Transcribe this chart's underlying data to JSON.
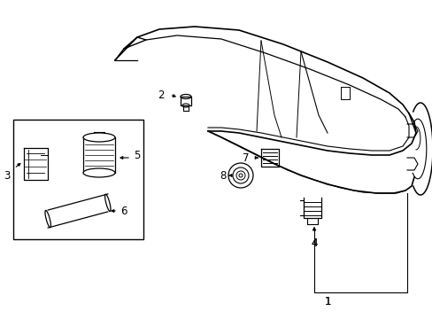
{
  "background_color": "#ffffff",
  "line_color": "#000000",
  "fig_width": 4.89,
  "fig_height": 3.6,
  "dpi": 100,
  "annotation_fontsize": 8.5,
  "arrow_color": "#000000",
  "lw": 0.9
}
